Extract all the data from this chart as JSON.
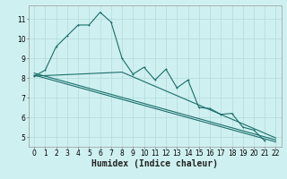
{
  "bg_color": "#cff0f0",
  "grid_color": "#b8dede",
  "line_color": "#1a6e6a",
  "xlabel": "Humidex (Indice chaleur)",
  "xlabel_fontsize": 7,
  "tick_fontsize": 5.5,
  "xlim": [
    -0.5,
    22.5
  ],
  "ylim": [
    4.5,
    11.7
  ],
  "yticks": [
    5,
    6,
    7,
    8,
    9,
    10,
    11
  ],
  "xticks": [
    0,
    1,
    2,
    3,
    4,
    5,
    6,
    7,
    8,
    9,
    10,
    11,
    12,
    13,
    14,
    15,
    16,
    17,
    18,
    19,
    20,
    21,
    22
  ],
  "jagged_x": [
    0,
    1,
    2,
    3,
    4,
    5,
    6,
    7,
    8,
    9,
    10,
    11,
    12,
    13,
    14,
    15,
    16,
    17,
    18,
    19,
    20,
    21
  ],
  "jagged_y": [
    8.1,
    8.4,
    9.6,
    10.15,
    10.7,
    10.7,
    11.35,
    10.85,
    9.0,
    8.2,
    8.55,
    7.9,
    8.45,
    7.5,
    7.9,
    6.5,
    6.45,
    6.15,
    6.2,
    5.5,
    5.35,
    4.8
  ],
  "line1_x": [
    0,
    22
  ],
  "line1_y": [
    8.25,
    4.85
  ],
  "line2_x": [
    0,
    8,
    22
  ],
  "line2_y": [
    8.1,
    8.3,
    4.95
  ],
  "line3_x": [
    0,
    22
  ],
  "line3_y": [
    8.15,
    4.75
  ]
}
